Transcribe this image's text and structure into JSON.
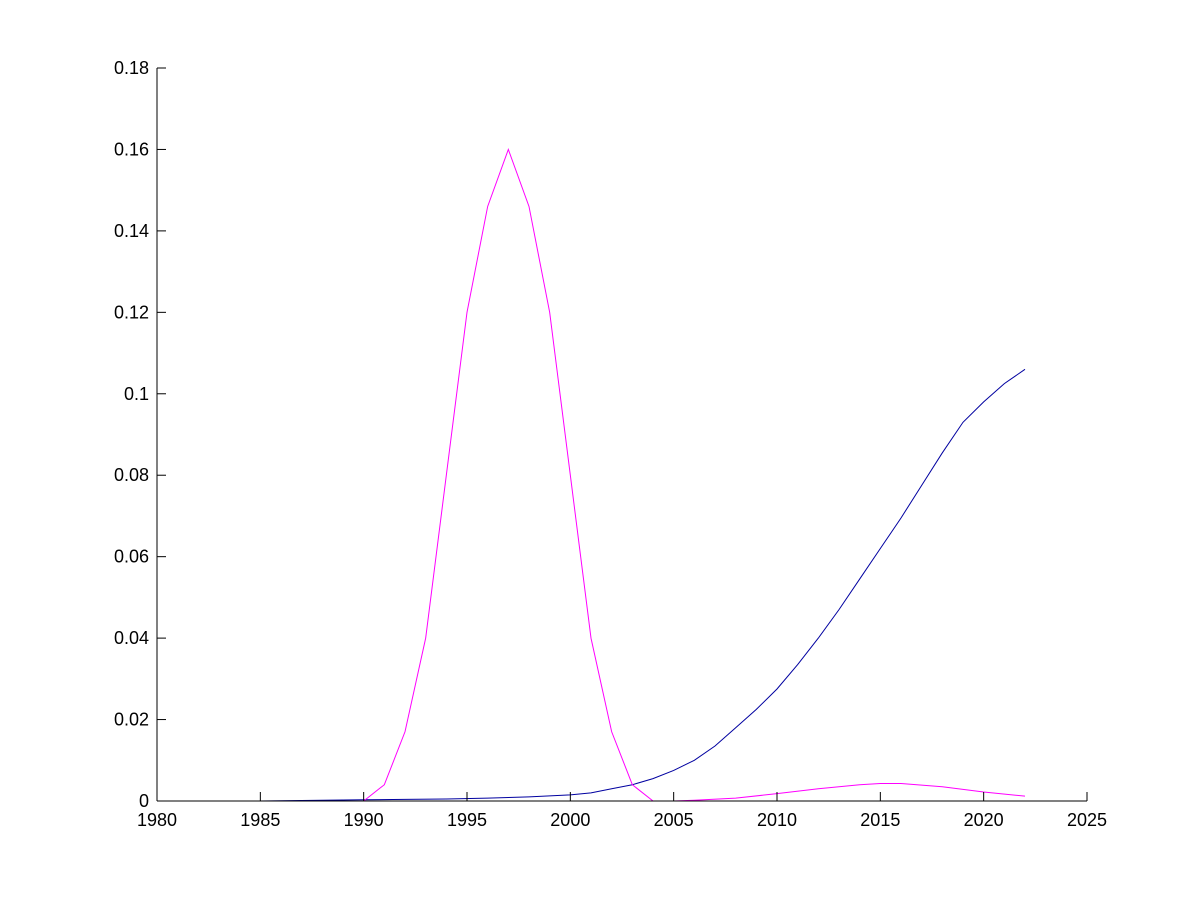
{
  "chart_data": {
    "type": "line",
    "title": "",
    "xlabel": "",
    "ylabel": "",
    "xlim": [
      1980,
      2025
    ],
    "ylim": [
      0,
      0.18
    ],
    "xticks": [
      1980,
      1985,
      1990,
      1995,
      2000,
      2005,
      2010,
      2015,
      2020,
      2025
    ],
    "xtick_labels": [
      "1980",
      "1985",
      "1990",
      "1995",
      "2000",
      "2005",
      "2010",
      "2015",
      "2020",
      "2025"
    ],
    "yticks": [
      0,
      0.02,
      0.04,
      0.06,
      0.08,
      0.1,
      0.12,
      0.14,
      0.16,
      0.18
    ],
    "ytick_labels": [
      "0",
      "0.02",
      "0.04",
      "0.06",
      "0.08",
      "0.1",
      "0.12",
      "0.14",
      "0.16",
      "0.18"
    ],
    "grid": false,
    "legend": "none",
    "series": [
      {
        "color": "#0000a0",
        "points": [
          [
            1980,
            0
          ],
          [
            1985,
            0
          ],
          [
            1988,
            0.0002
          ],
          [
            1990,
            0.0003
          ],
          [
            1992,
            0.0004
          ],
          [
            1994,
            0.0005
          ],
          [
            1996,
            0.0007
          ],
          [
            1998,
            0.001
          ],
          [
            2000,
            0.0015
          ],
          [
            2001,
            0.002
          ],
          [
            2002,
            0.003
          ],
          [
            2003,
            0.004
          ],
          [
            2004,
            0.0055
          ],
          [
            2005,
            0.0075
          ],
          [
            2006,
            0.01
          ],
          [
            2007,
            0.0135
          ],
          [
            2008,
            0.018
          ],
          [
            2009,
            0.0225
          ],
          [
            2010,
            0.0275
          ],
          [
            2011,
            0.0335
          ],
          [
            2012,
            0.04
          ],
          [
            2013,
            0.047
          ],
          [
            2014,
            0.0545
          ],
          [
            2015,
            0.062
          ],
          [
            2016,
            0.0695
          ],
          [
            2017,
            0.0775
          ],
          [
            2018,
            0.0855
          ],
          [
            2019,
            0.093
          ],
          [
            2020,
            0.098
          ],
          [
            2021,
            0.1025
          ],
          [
            2022,
            0.106
          ]
        ]
      },
      {
        "color": "#ff00ff",
        "points": [
          [
            1980,
            0
          ],
          [
            1988,
            0
          ],
          [
            1990,
            0
          ],
          [
            1991,
            0.004
          ],
          [
            1992,
            0.017
          ],
          [
            1993,
            0.04
          ],
          [
            1994,
            0.08
          ],
          [
            1995,
            0.12
          ],
          [
            1996,
            0.146
          ],
          [
            1997,
            0.16
          ],
          [
            1998,
            0.146
          ],
          [
            1999,
            0.12
          ],
          [
            2000,
            0.08
          ],
          [
            2001,
            0.04
          ],
          [
            2002,
            0.017
          ],
          [
            2003,
            0.004
          ],
          [
            2004,
            0
          ]
        ]
      },
      {
        "color": "#ff00ff",
        "points": [
          [
            2005,
            0
          ],
          [
            2006,
            0.0002
          ],
          [
            2008,
            0.0007
          ],
          [
            2010,
            0.0018
          ],
          [
            2012,
            0.003
          ],
          [
            2014,
            0.004
          ],
          [
            2015,
            0.0043
          ],
          [
            2016,
            0.0043
          ],
          [
            2018,
            0.0035
          ],
          [
            2020,
            0.0022
          ],
          [
            2022,
            0.0012
          ]
        ]
      }
    ]
  }
}
